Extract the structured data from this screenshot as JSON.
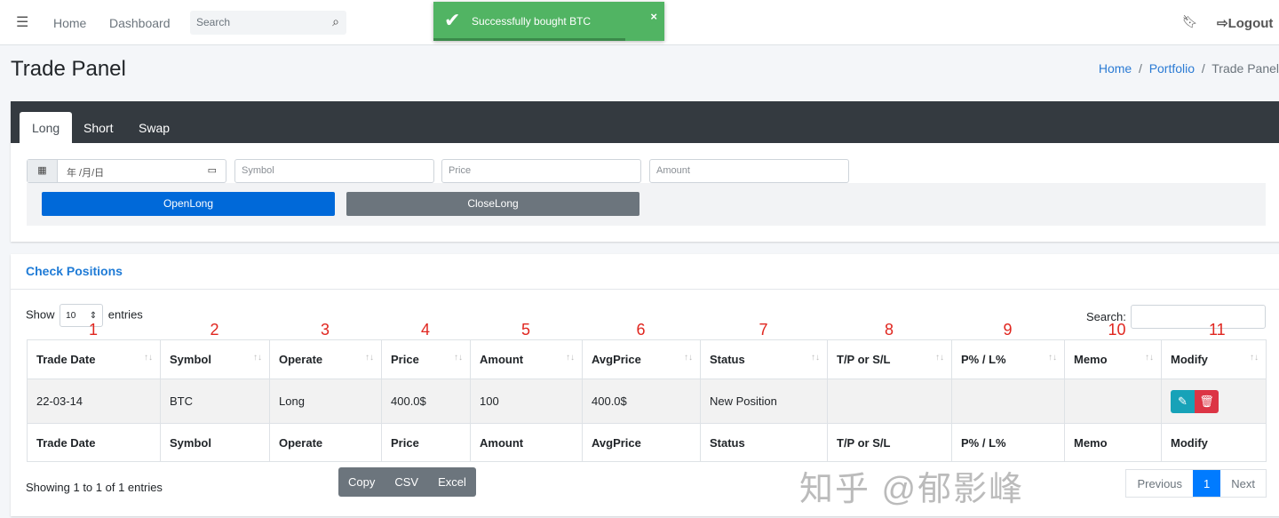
{
  "nav": {
    "home": "Home",
    "dashboard": "Dashboard",
    "search_placeholder": "Search",
    "logout": "Logout"
  },
  "toast": {
    "message": "Successfully bought BTC",
    "close": "×"
  },
  "page": {
    "title": "Trade Panel",
    "breadcrumb": [
      "Home",
      "Portfolio",
      "Trade Panel"
    ]
  },
  "trade": {
    "tabs": [
      "Long",
      "Short",
      "Swap"
    ],
    "date_placeholder": "年 /月/日",
    "symbol_placeholder": "Symbol",
    "price_placeholder": "Price",
    "amount_placeholder": "Amount",
    "open_label": "OpenLong",
    "close_label": "CloseLong",
    "colors": {
      "open": "#0069d9",
      "close": "#6c757d"
    }
  },
  "positions": {
    "title": "Check Positions",
    "show": "Show",
    "entries_value": "10",
    "entries": "entries",
    "search_label": "Search:",
    "annotations": [
      "1",
      "2",
      "3",
      "4",
      "5",
      "6",
      "7",
      "8",
      "9",
      "10",
      "11"
    ],
    "columns": [
      "Trade Date",
      "Symbol",
      "Operate",
      "Price",
      "Amount",
      "AvgPrice",
      "Status",
      "T/P or S/L",
      "P% / L%",
      "Memo",
      "Modify"
    ],
    "rows": [
      [
        "22-03-14",
        "BTC",
        "Long",
        "400.0$",
        "100",
        "400.0$",
        "New Position",
        "",
        "",
        ""
      ]
    ],
    "info": "Showing 1 to 1 of 1 entries",
    "export": [
      "Copy",
      "CSV",
      "Excel"
    ],
    "pagination": [
      "Previous",
      "1",
      "Next"
    ]
  },
  "watermark": "知乎 @郁影峰"
}
